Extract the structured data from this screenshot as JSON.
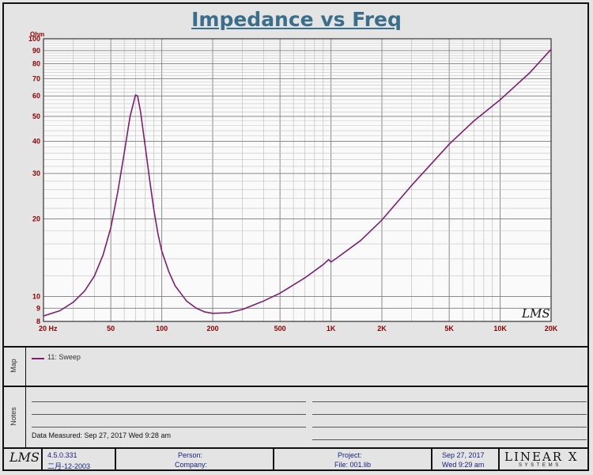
{
  "chart_data": {
    "type": "line",
    "title": "Impedance vs Freq",
    "y_unit": "Ohm",
    "x_scale": "log",
    "y_scale": "log",
    "xlim": [
      20,
      20000
    ],
    "ylim": [
      8,
      100
    ],
    "x_ticks": [
      {
        "value": 20,
        "label": "20 Hz"
      },
      {
        "value": 50,
        "label": "50"
      },
      {
        "value": 100,
        "label": "100"
      },
      {
        "value": 200,
        "label": "200"
      },
      {
        "value": 500,
        "label": "500"
      },
      {
        "value": 1000,
        "label": "1K"
      },
      {
        "value": 2000,
        "label": "2K"
      },
      {
        "value": 5000,
        "label": "5K"
      },
      {
        "value": 10000,
        "label": "10K"
      },
      {
        "value": 20000,
        "label": "20K"
      }
    ],
    "y_ticks": [
      {
        "value": 100,
        "label": "100"
      },
      {
        "value": 90,
        "label": "90"
      },
      {
        "value": 80,
        "label": "80"
      },
      {
        "value": 70,
        "label": "70"
      },
      {
        "value": 60,
        "label": "60"
      },
      {
        "value": 50,
        "label": "50"
      },
      {
        "value": 40,
        "label": "40"
      },
      {
        "value": 30,
        "label": "30"
      },
      {
        "value": 20,
        "label": "20"
      },
      {
        "value": 10,
        "label": "10"
      },
      {
        "value": 9,
        "label": "9"
      },
      {
        "value": 8,
        "label": "8"
      }
    ],
    "grid": true,
    "watermark": "LMS",
    "series": [
      {
        "name": "11: Sweep",
        "color": "#7b1f6f",
        "points": [
          [
            20,
            8.4
          ],
          [
            25,
            8.8
          ],
          [
            30,
            9.5
          ],
          [
            35,
            10.5
          ],
          [
            40,
            12.0
          ],
          [
            45,
            14.5
          ],
          [
            50,
            18.5
          ],
          [
            55,
            25.5
          ],
          [
            60,
            36.0
          ],
          [
            65,
            50.0
          ],
          [
            70,
            60.5
          ],
          [
            72,
            60.0
          ],
          [
            75,
            52.0
          ],
          [
            80,
            38.0
          ],
          [
            85,
            28.0
          ],
          [
            90,
            21.5
          ],
          [
            95,
            17.5
          ],
          [
            100,
            15.0
          ],
          [
            110,
            12.5
          ],
          [
            120,
            11.0
          ],
          [
            140,
            9.6
          ],
          [
            160,
            9.0
          ],
          [
            180,
            8.7
          ],
          [
            200,
            8.6
          ],
          [
            250,
            8.65
          ],
          [
            300,
            8.9
          ],
          [
            400,
            9.6
          ],
          [
            500,
            10.3
          ],
          [
            700,
            11.8
          ],
          [
            900,
            13.3
          ],
          [
            970,
            13.9
          ],
          [
            1000,
            13.6
          ],
          [
            1100,
            14.2
          ],
          [
            1500,
            16.5
          ],
          [
            2000,
            19.8
          ],
          [
            3000,
            27.0
          ],
          [
            5000,
            39.0
          ],
          [
            7000,
            48.0
          ],
          [
            10000,
            58.0
          ],
          [
            15000,
            74.0
          ],
          [
            20000,
            91.0
          ]
        ]
      }
    ]
  },
  "map": {
    "label": "Map",
    "legend_entry": "11: Sweep"
  },
  "notes": {
    "label": "Notes",
    "measured": "Data Measured: Sep 27, 2017  Wed  9:28 am"
  },
  "footer": {
    "logo": "LMS",
    "version": "4.5.0.331",
    "version_date": "二月-12-2003",
    "person_label": "Person:",
    "company_label": "Company:",
    "project_label": "Project:",
    "file_label": "File: 001.lib",
    "date": "Sep 27, 2017",
    "time": "Wed  9:29 am",
    "brand": "LINEAR X",
    "brand_sub": "S Y S T E M S"
  }
}
